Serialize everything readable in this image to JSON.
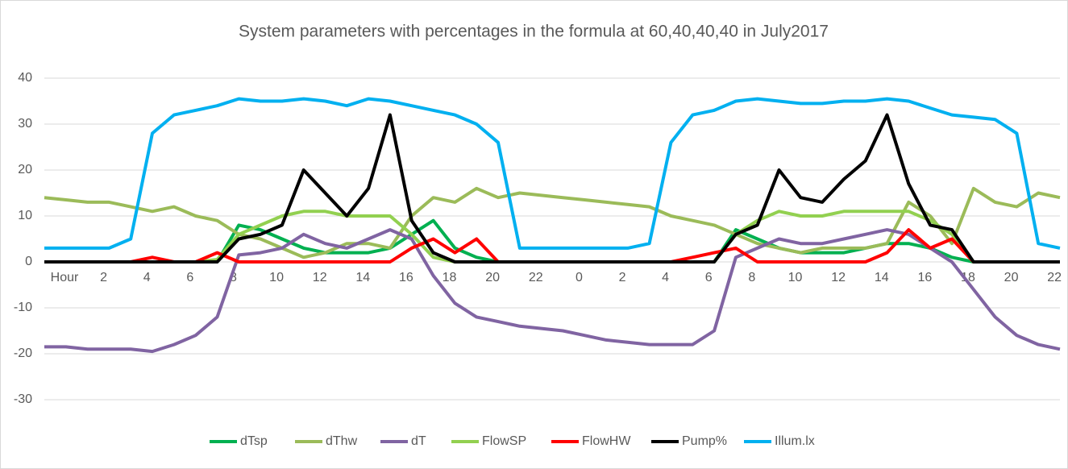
{
  "chart_data": {
    "type": "line",
    "title": "System parameters with percentages in the formula at 60,40,40,40 in July2017",
    "categories": [
      "Hour",
      null,
      "2",
      null,
      "4",
      null,
      "6",
      null,
      "8",
      null,
      "10",
      null,
      "12",
      null,
      "14",
      null,
      "16",
      null,
      "18",
      null,
      "20",
      null,
      "22",
      null,
      "0",
      null,
      "2",
      null,
      "4",
      null,
      "6",
      null,
      "8",
      null,
      "10",
      null,
      "12",
      null,
      "14",
      null,
      "16",
      null,
      "18",
      null,
      "20",
      null,
      "22",
      null
    ],
    "ylim": [
      -30,
      40
    ],
    "yticks": [
      -30,
      -20,
      -10,
      0,
      10,
      20,
      30,
      40
    ],
    "grid": true,
    "legend": "bottom",
    "series": [
      {
        "name": "dTsp",
        "color": "#00b050",
        "values": [
          0,
          0,
          0,
          0,
          0,
          0,
          0,
          0,
          0,
          8,
          7,
          5,
          3,
          2,
          2,
          2,
          3,
          6,
          9,
          3,
          1,
          0,
          0,
          0,
          0,
          0,
          0,
          0,
          0,
          0,
          0,
          0,
          7,
          5,
          3,
          2,
          2,
          2,
          3,
          4,
          4,
          3,
          1,
          0,
          0,
          0,
          0,
          0
        ]
      },
      {
        "name": "dThw",
        "color": "#9bbb59",
        "values": [
          14,
          13.5,
          13,
          13,
          12,
          11,
          12,
          10,
          9,
          6,
          5,
          3,
          1,
          2,
          4,
          4,
          3,
          10,
          14,
          13,
          16,
          14,
          15,
          14.5,
          14,
          13.5,
          13,
          12.5,
          12,
          10,
          9,
          8,
          6,
          4,
          3,
          2,
          3,
          3,
          3,
          4,
          13,
          10,
          4,
          16,
          13,
          12,
          15,
          14
        ]
      },
      {
        "name": "dT",
        "color": "#8064a2",
        "values": [
          -18.5,
          -18.5,
          -19,
          -19,
          -19,
          -19.5,
          -18,
          -16,
          -12,
          1.5,
          2,
          3,
          6,
          4,
          3,
          5,
          7,
          5,
          -3,
          -9,
          -12,
          -13,
          -14,
          -14.5,
          -15,
          -16,
          -17,
          -17.5,
          -18,
          -18,
          -18,
          -15,
          1,
          3,
          5,
          4,
          4,
          5,
          6,
          7,
          6,
          3,
          0,
          -6,
          -12,
          -16,
          -18,
          -19
        ]
      },
      {
        "name": "FlowSP",
        "color": "#92d050",
        "values": [
          0,
          0,
          0,
          0,
          0,
          0,
          0,
          0,
          0.5,
          6,
          8,
          10,
          11,
          11,
          10,
          10,
          10,
          6,
          1,
          0,
          0,
          0,
          0,
          0,
          0,
          0,
          0,
          0,
          0,
          0,
          0,
          0,
          6,
          9,
          11,
          10,
          10,
          11,
          11,
          11,
          11,
          9,
          6,
          0,
          0,
          0,
          0,
          0
        ]
      },
      {
        "name": "FlowHW",
        "color": "#ff0000",
        "values": [
          0,
          0,
          0,
          0,
          0,
          1,
          0,
          0,
          2,
          0,
          0,
          0,
          0,
          0,
          0,
          0,
          0,
          3,
          5,
          2,
          5,
          0,
          0,
          0,
          0,
          0,
          0,
          0,
          0,
          0,
          1,
          2,
          3,
          0,
          0,
          0,
          0,
          0,
          0,
          2,
          7,
          3,
          5,
          0,
          0,
          0,
          0,
          0
        ]
      },
      {
        "name": "Pump%",
        "color": "#000000",
        "values": [
          0,
          0,
          0,
          0,
          0,
          0,
          0,
          0,
          0,
          5,
          6,
          8,
          20,
          15,
          10,
          16,
          32,
          9,
          2,
          0,
          0,
          0,
          0,
          0,
          0,
          0,
          0,
          0,
          0,
          0,
          0,
          0,
          6,
          8,
          20,
          14,
          13,
          18,
          22,
          32,
          17,
          8,
          7,
          0,
          0,
          0,
          0,
          0
        ]
      },
      {
        "name": "Illum.lx",
        "color": "#00b0f0",
        "values": [
          3,
          3,
          3,
          3,
          5,
          28,
          32,
          33,
          34,
          35.5,
          35,
          35,
          35.5,
          35,
          34,
          35.5,
          35,
          34,
          33,
          32,
          30,
          26,
          3,
          3,
          3,
          3,
          3,
          3,
          4,
          26,
          32,
          33,
          35,
          35.5,
          35,
          34.5,
          34.5,
          35,
          35,
          35.5,
          35,
          33.5,
          32,
          31.5,
          31,
          28,
          4,
          3
        ]
      }
    ]
  }
}
